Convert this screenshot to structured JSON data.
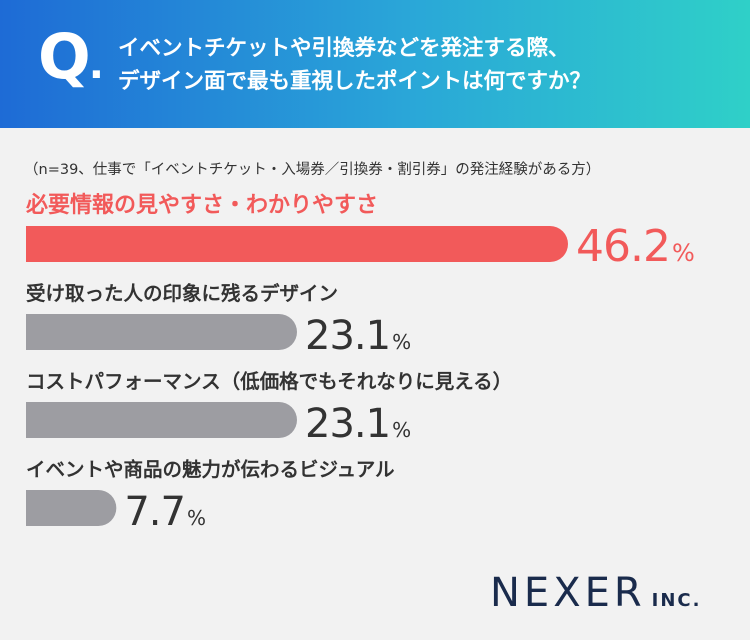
{
  "header": {
    "q_mark": "Q",
    "q_dot": ".",
    "question_line1": "イベントチケットや引換券などを発注する際、",
    "question_line2": "デザイン面で最も重視したポイントは何ですか？"
  },
  "sample_note": "（n=39、仕事で「イベントチケット・入場券／引換券・割引券」の発注経験がある方）",
  "logo": {
    "main": "NEXER",
    "sub": "INC."
  },
  "colors": {
    "header_start": "#1e6bd6",
    "header_end": "#2fd0c8",
    "highlight": "#f25a5a",
    "bar_default": "#9d9da2",
    "text_default": "#333333",
    "logo": "#1a2b4c"
  },
  "chart_data": {
    "type": "bar",
    "orientation": "horizontal",
    "categories": [
      "必要情報の見やすさ・わかりやすさ",
      "受け取った人の印象に残るデザイン",
      "コストパフォーマンス（低価格でもそれなりに見える）",
      "イベントや商品の魅力が伝わるビジュアル"
    ],
    "values": [
      46.2,
      23.1,
      23.1,
      7.7
    ],
    "value_labels": [
      "46.2",
      "23.1",
      "23.1",
      "7.7"
    ],
    "unit": "%",
    "highlight_index": 0,
    "xlim": [
      0,
      46.2
    ],
    "grid": false,
    "legend": "none"
  }
}
